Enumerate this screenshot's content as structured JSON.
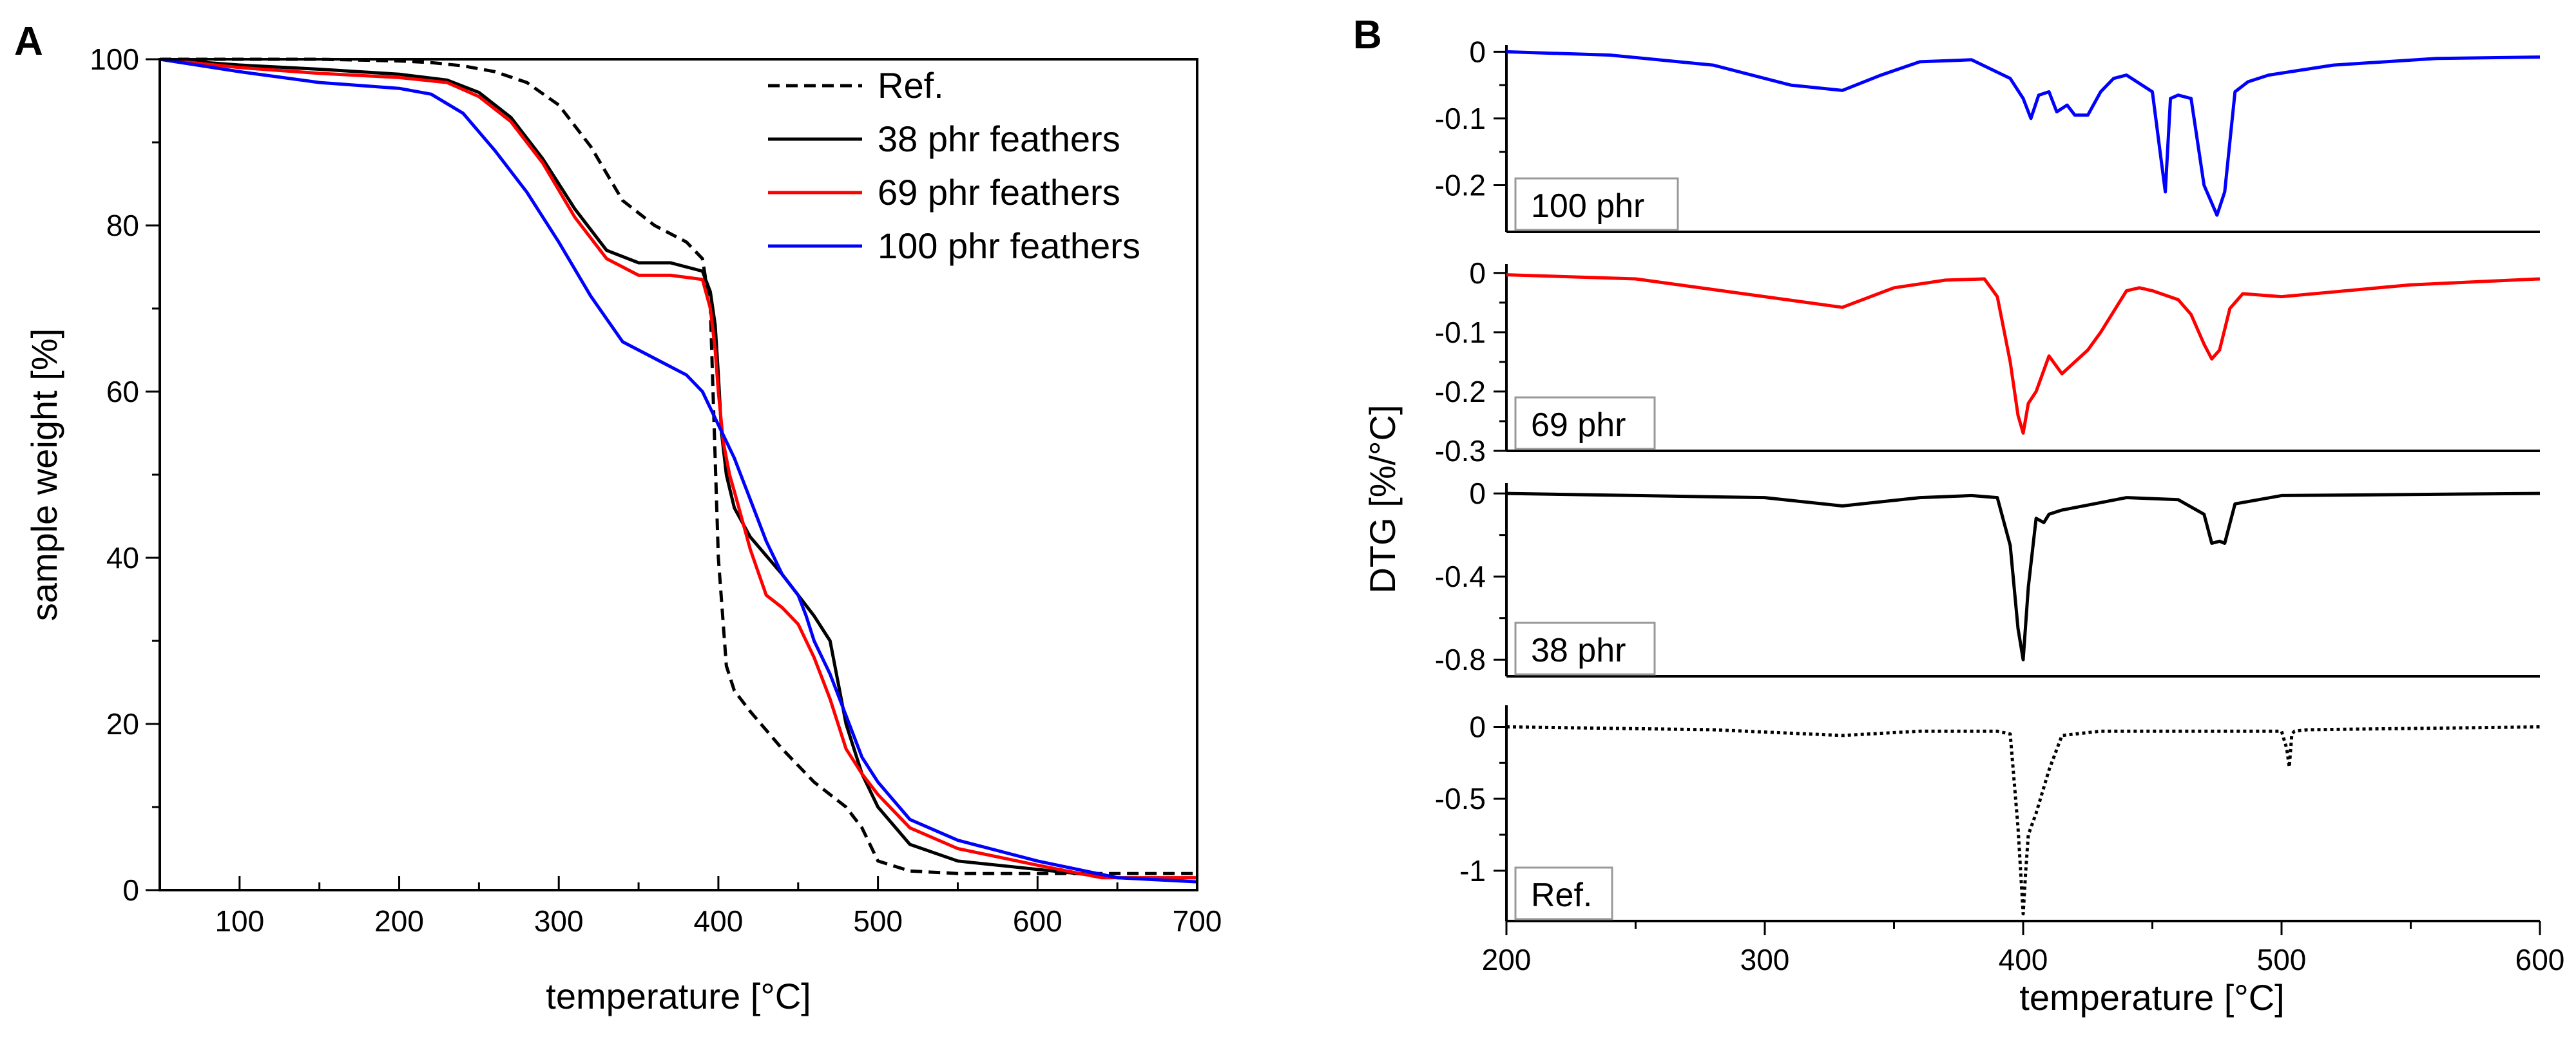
{
  "chart_data": [
    {
      "type": "line",
      "panel_label": "A",
      "xlabel": "temperature [°C]",
      "ylabel": "sample weight [%]",
      "xlim": [
        50,
        700
      ],
      "ylim": [
        0,
        100
      ],
      "xticks": [
        100,
        200,
        300,
        400,
        500,
        600,
        700
      ],
      "yticks": [
        0,
        20,
        40,
        60,
        80,
        100
      ],
      "legend_position": "top-right",
      "series": [
        {
          "name": "Ref.",
          "color": "#000000",
          "dash": "dashed",
          "x": [
            50,
            100,
            150,
            200,
            220,
            240,
            260,
            280,
            300,
            320,
            340,
            360,
            380,
            390,
            395,
            400,
            405,
            410,
            420,
            440,
            460,
            480,
            490,
            495,
            500,
            520,
            550,
            600,
            650,
            700
          ],
          "y": [
            100,
            100,
            100,
            99.8,
            99.6,
            99.2,
            98.5,
            97.2,
            94.5,
            89.5,
            83,
            80,
            78,
            76,
            70,
            40,
            27,
            24,
            21.5,
            17,
            13,
            10,
            7.5,
            5.5,
            3.5,
            2.3,
            2,
            2,
            2,
            2
          ]
        },
        {
          "name": "38 phr feathers",
          "color": "#000000",
          "dash": "solid",
          "x": [
            50,
            100,
            150,
            200,
            230,
            250,
            270,
            290,
            310,
            330,
            350,
            370,
            390,
            395,
            398,
            400,
            402,
            405,
            410,
            420,
            440,
            460,
            470,
            480,
            490,
            500,
            520,
            550,
            600,
            650,
            700
          ],
          "y": [
            100,
            99.3,
            98.8,
            98.2,
            97.5,
            96,
            93,
            88,
            82,
            77,
            75.5,
            75.5,
            74.5,
            72,
            68,
            62,
            55,
            50,
            46,
            42.5,
            38,
            33,
            30,
            20,
            14,
            10,
            5.5,
            3.5,
            2.5,
            1.5,
            1.5
          ]
        },
        {
          "name": "69 phr feathers",
          "color": "#ff0000",
          "dash": "solid",
          "x": [
            50,
            100,
            150,
            200,
            230,
            250,
            270,
            290,
            310,
            330,
            350,
            370,
            390,
            395,
            398,
            400,
            403,
            407,
            410,
            420,
            430,
            440,
            450,
            460,
            470,
            480,
            490,
            500,
            520,
            550,
            600,
            640,
            700
          ],
          "y": [
            100,
            99,
            98.3,
            97.8,
            97.2,
            95.5,
            92.5,
            87.5,
            81,
            76,
            74,
            74,
            73.5,
            70,
            65,
            60,
            54,
            50,
            48,
            41,
            35.5,
            34,
            32,
            28,
            23,
            17,
            14,
            11.5,
            7.5,
            5,
            3,
            1.5,
            1.5
          ]
        },
        {
          "name": "100 phr feathers",
          "color": "#0000ff",
          "dash": "solid",
          "x": [
            50,
            100,
            150,
            200,
            220,
            240,
            260,
            280,
            300,
            320,
            340,
            360,
            380,
            390,
            400,
            410,
            420,
            430,
            440,
            450,
            455,
            460,
            470,
            480,
            490,
            500,
            520,
            550,
            600,
            650,
            700
          ],
          "y": [
            100,
            98.5,
            97.2,
            96.5,
            95.8,
            93.5,
            89,
            84,
            78,
            71.5,
            66,
            64,
            62,
            60,
            56,
            52,
            47,
            42,
            38,
            35.5,
            33,
            30,
            26,
            21,
            16,
            13,
            8.5,
            6,
            3.5,
            1.5,
            1
          ]
        }
      ]
    },
    {
      "type": "line",
      "panel_label": "B",
      "xlabel": "temperature [°C]",
      "ylabel": "DTG [%/°C]",
      "xlim": [
        200,
        600
      ],
      "xticks": [
        200,
        300,
        400,
        500,
        600
      ],
      "subplots": [
        {
          "label": "100 phr",
          "color": "#0000ff",
          "dash": "solid",
          "ylim": [
            -0.27,
            0.01
          ],
          "yticks": [
            0,
            -0.1,
            -0.2
          ],
          "ytick_labels": [
            "0",
            "-0.1",
            "-0.2"
          ],
          "x": [
            200,
            240,
            280,
            310,
            330,
            345,
            360,
            380,
            395,
            400,
            403,
            406,
            410,
            413,
            417,
            420,
            425,
            430,
            435,
            440,
            450,
            453,
            455,
            457,
            460,
            465,
            470,
            475,
            478,
            482,
            487,
            495,
            520,
            560,
            600
          ],
          "y": [
            0,
            -0.005,
            -0.02,
            -0.05,
            -0.058,
            -0.035,
            -0.015,
            -0.012,
            -0.04,
            -0.07,
            -0.1,
            -0.065,
            -0.06,
            -0.09,
            -0.08,
            -0.095,
            -0.095,
            -0.06,
            -0.04,
            -0.035,
            -0.06,
            -0.15,
            -0.21,
            -0.07,
            -0.065,
            -0.07,
            -0.2,
            -0.245,
            -0.21,
            -0.06,
            -0.045,
            -0.035,
            -0.02,
            -0.01,
            -0.008
          ]
        },
        {
          "label": "69 phr",
          "color": "#ff0000",
          "dash": "solid",
          "ylim": [
            -0.3,
            0.015
          ],
          "yticks": [
            0,
            -0.1,
            -0.2,
            -0.3
          ],
          "ytick_labels": [
            "0",
            "-0.1",
            "-0.2",
            "-0.3"
          ],
          "x": [
            200,
            250,
            300,
            330,
            350,
            370,
            385,
            390,
            395,
            398,
            400,
            402,
            405,
            410,
            415,
            420,
            425,
            430,
            440,
            445,
            450,
            460,
            465,
            470,
            473,
            476,
            480,
            485,
            500,
            550,
            600
          ],
          "y": [
            -0.003,
            -0.01,
            -0.04,
            -0.058,
            -0.025,
            -0.012,
            -0.01,
            -0.04,
            -0.15,
            -0.24,
            -0.27,
            -0.22,
            -0.2,
            -0.14,
            -0.17,
            -0.15,
            -0.13,
            -0.1,
            -0.03,
            -0.025,
            -0.03,
            -0.045,
            -0.07,
            -0.12,
            -0.145,
            -0.13,
            -0.06,
            -0.035,
            -0.04,
            -0.02,
            -0.01
          ]
        },
        {
          "label": "38 phr",
          "color": "#000000",
          "dash": "solid",
          "ylim": [
            -0.88,
            0.05
          ],
          "yticks": [
            0,
            -0.4,
            -0.8
          ],
          "ytick_labels": [
            "0",
            "-0.4",
            "-0.8"
          ],
          "x": [
            200,
            250,
            300,
            330,
            360,
            380,
            390,
            395,
            398,
            400,
            402,
            405,
            408,
            410,
            415,
            440,
            460,
            470,
            473,
            476,
            478,
            482,
            500,
            600
          ],
          "y": [
            0,
            -0.01,
            -0.02,
            -0.06,
            -0.02,
            -0.01,
            -0.02,
            -0.25,
            -0.65,
            -0.8,
            -0.45,
            -0.12,
            -0.14,
            -0.1,
            -0.08,
            -0.02,
            -0.03,
            -0.1,
            -0.24,
            -0.23,
            -0.24,
            -0.05,
            -0.01,
            0
          ]
        },
        {
          "label": "Ref.",
          "color": "#000000",
          "dash": "dotted",
          "ylim": [
            -1.35,
            0.15
          ],
          "yticks": [
            0,
            -0.5,
            -1
          ],
          "ytick_labels": [
            "0",
            "-0.5",
            "-1"
          ],
          "x": [
            200,
            280,
            330,
            360,
            390,
            395,
            398,
            400,
            401,
            402,
            405,
            410,
            415,
            430,
            500,
            502,
            503,
            504,
            505,
            510,
            600
          ],
          "y": [
            0,
            -0.02,
            -0.06,
            -0.03,
            -0.03,
            -0.05,
            -0.7,
            -1.3,
            -1.0,
            -0.75,
            -0.6,
            -0.3,
            -0.06,
            -0.03,
            -0.03,
            -0.15,
            -0.28,
            -0.05,
            -0.03,
            -0.02,
            0
          ]
        }
      ]
    }
  ]
}
